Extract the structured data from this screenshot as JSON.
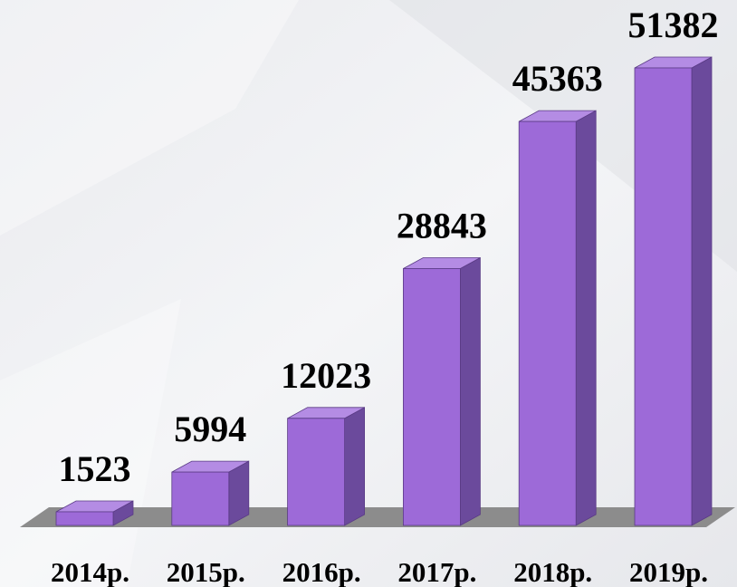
{
  "chart_data": {
    "type": "bar",
    "categories": [
      "2014р.",
      "2015р.",
      "2016р.",
      "2017р.",
      "2018р.",
      "2019р."
    ],
    "values": [
      1523,
      5994,
      12023,
      28843,
      45363,
      51382
    ],
    "color": "#9d6ad8"
  }
}
